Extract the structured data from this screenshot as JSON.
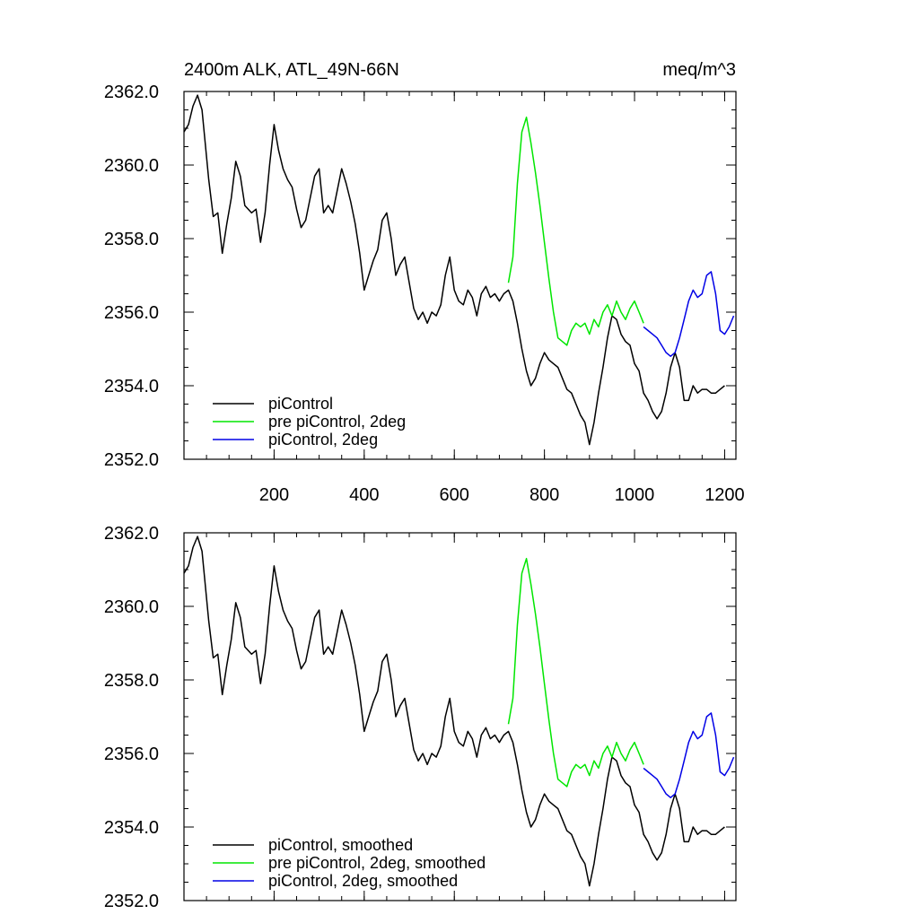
{
  "chart_data": [
    {
      "type": "line",
      "title": "2400m ALK, ATL_49N-66N",
      "units": "meq/m^3",
      "xlabel": "",
      "ylabel": "",
      "xlim": [
        0,
        1225
      ],
      "ylim": [
        2352.0,
        2362.0
      ],
      "xticks": [
        200,
        400,
        600,
        800,
        1000,
        1200
      ],
      "xtick_labels": [
        "200",
        "400",
        "600",
        "800",
        "1000",
        "1200"
      ],
      "yticks": [
        2352.0,
        2354.0,
        2356.0,
        2358.0,
        2360.0,
        2362.0
      ],
      "ytick_labels": [
        "2352.0",
        "2354.0",
        "2356.0",
        "2358.0",
        "2360.0",
        "2362.0"
      ],
      "legend_position": "bottom-left",
      "series": [
        {
          "name": "piControl",
          "color": "#000000",
          "x": [
            0,
            10,
            20,
            30,
            40,
            55,
            65,
            75,
            85,
            95,
            105,
            115,
            125,
            135,
            150,
            160,
            170,
            180,
            190,
            200,
            210,
            220,
            230,
            240,
            250,
            260,
            270,
            280,
            290,
            300,
            310,
            320,
            330,
            340,
            350,
            360,
            370,
            380,
            390,
            400,
            410,
            420,
            430,
            440,
            450,
            460,
            470,
            480,
            490,
            500,
            510,
            520,
            530,
            540,
            550,
            560,
            570,
            580,
            590,
            600,
            610,
            620,
            630,
            640,
            650,
            660,
            670,
            680,
            690,
            700,
            710,
            720,
            730,
            740,
            750,
            760,
            770,
            780,
            790,
            800,
            810,
            820,
            830,
            840,
            850,
            860,
            870,
            880,
            890,
            900,
            910,
            920,
            930,
            940,
            950,
            960,
            970,
            980,
            990,
            1000,
            1010,
            1020,
            1030,
            1040,
            1050,
            1060,
            1070,
            1080,
            1090,
            1100,
            1110,
            1120,
            1130,
            1140,
            1150,
            1160,
            1170,
            1180,
            1190,
            1200
          ],
          "y": [
            2360.9,
            2361.1,
            2361.6,
            2361.9,
            2361.5,
            2359.6,
            2358.6,
            2358.7,
            2357.6,
            2358.4,
            2359.1,
            2360.1,
            2359.7,
            2358.9,
            2358.7,
            2358.8,
            2357.9,
            2358.7,
            2360.0,
            2361.1,
            2360.4,
            2359.9,
            2359.6,
            2359.4,
            2358.8,
            2358.3,
            2358.5,
            2359.1,
            2359.7,
            2359.9,
            2358.7,
            2358.9,
            2358.7,
            2359.3,
            2359.9,
            2359.5,
            2359.0,
            2358.4,
            2357.6,
            2356.6,
            2357.0,
            2357.4,
            2357.7,
            2358.5,
            2358.7,
            2358.0,
            2357.0,
            2357.3,
            2357.5,
            2356.8,
            2356.1,
            2355.8,
            2356.0,
            2355.7,
            2356.0,
            2355.9,
            2356.2,
            2357.0,
            2357.5,
            2356.6,
            2356.3,
            2356.2,
            2356.6,
            2356.4,
            2355.9,
            2356.5,
            2356.7,
            2356.4,
            2356.5,
            2356.3,
            2356.5,
            2356.6,
            2356.3,
            2355.7,
            2355.0,
            2354.4,
            2354.0,
            2354.2,
            2354.6,
            2354.9,
            2354.7,
            2354.6,
            2354.5,
            2354.2,
            2353.9,
            2353.8,
            2353.5,
            2353.2,
            2353.0,
            2352.4,
            2353.0,
            2353.8,
            2354.5,
            2355.3,
            2355.9,
            2355.8,
            2355.4,
            2355.2,
            2355.1,
            2354.6,
            2354.4,
            2353.8,
            2353.6,
            2353.3,
            2353.1,
            2353.3,
            2353.8,
            2354.5,
            2354.9,
            2354.5,
            2353.6,
            2353.6,
            2354.0,
            2353.8,
            2353.9,
            2353.9,
            2353.8,
            2353.8,
            2353.9,
            2354.0
          ]
        },
        {
          "name": "pre piControl, 2deg",
          "color": "#00e600",
          "x": [
            720,
            730,
            740,
            750,
            760,
            770,
            780,
            790,
            800,
            810,
            820,
            830,
            840,
            850,
            860,
            870,
            880,
            890,
            900,
            910,
            920,
            930,
            940,
            950,
            960,
            970,
            980,
            990,
            1000,
            1010,
            1020
          ],
          "y": [
            2356.8,
            2357.5,
            2359.5,
            2360.9,
            2361.3,
            2360.6,
            2359.8,
            2358.9,
            2357.9,
            2356.9,
            2356.0,
            2355.3,
            2355.2,
            2355.1,
            2355.5,
            2355.7,
            2355.6,
            2355.7,
            2355.4,
            2355.8,
            2355.6,
            2356.0,
            2356.2,
            2355.9,
            2356.3,
            2356.0,
            2355.8,
            2356.1,
            2356.3,
            2356.0,
            2355.7
          ]
        },
        {
          "name": "piControl, 2deg",
          "color": "#0000e6",
          "x": [
            1020,
            1030,
            1040,
            1050,
            1060,
            1070,
            1080,
            1090,
            1100,
            1110,
            1120,
            1130,
            1140,
            1150,
            1160,
            1170,
            1180,
            1190,
            1200,
            1210,
            1220
          ],
          "y": [
            2355.6,
            2355.5,
            2355.4,
            2355.3,
            2355.1,
            2354.9,
            2354.8,
            2354.9,
            2355.3,
            2355.8,
            2356.3,
            2356.6,
            2356.4,
            2356.5,
            2357.0,
            2357.1,
            2356.5,
            2355.5,
            2355.4,
            2355.6,
            2355.9
          ]
        }
      ]
    },
    {
      "type": "line",
      "title": "",
      "xlabel": "",
      "ylabel": "",
      "xlim": [
        0,
        1225
      ],
      "ylim": [
        2352.0,
        2362.0
      ],
      "xticks": [
        200,
        400,
        600,
        800,
        1000,
        1200
      ],
      "xtick_labels": [],
      "yticks": [
        2352.0,
        2354.0,
        2356.0,
        2358.0,
        2360.0,
        2362.0
      ],
      "ytick_labels": [
        "2352.0",
        "2354.0",
        "2356.0",
        "2358.0",
        "2360.0",
        "2362.0"
      ],
      "legend_position": "bottom-left",
      "series": [
        {
          "name": "piControl, smoothed",
          "color": "#000000",
          "x": [
            0,
            10,
            20,
            30,
            40,
            55,
            65,
            75,
            85,
            95,
            105,
            115,
            125,
            135,
            150,
            160,
            170,
            180,
            190,
            200,
            210,
            220,
            230,
            240,
            250,
            260,
            270,
            280,
            290,
            300,
            310,
            320,
            330,
            340,
            350,
            360,
            370,
            380,
            390,
            400,
            410,
            420,
            430,
            440,
            450,
            460,
            470,
            480,
            490,
            500,
            510,
            520,
            530,
            540,
            550,
            560,
            570,
            580,
            590,
            600,
            610,
            620,
            630,
            640,
            650,
            660,
            670,
            680,
            690,
            700,
            710,
            720,
            730,
            740,
            750,
            760,
            770,
            780,
            790,
            800,
            810,
            820,
            830,
            840,
            850,
            860,
            870,
            880,
            890,
            900,
            910,
            920,
            930,
            940,
            950,
            960,
            970,
            980,
            990,
            1000,
            1010,
            1020,
            1030,
            1040,
            1050,
            1060,
            1070,
            1080,
            1090,
            1100,
            1110,
            1120,
            1130,
            1140,
            1150,
            1160,
            1170,
            1180,
            1190,
            1200
          ],
          "y": [
            2360.9,
            2361.1,
            2361.6,
            2361.9,
            2361.5,
            2359.6,
            2358.6,
            2358.7,
            2357.6,
            2358.4,
            2359.1,
            2360.1,
            2359.7,
            2358.9,
            2358.7,
            2358.8,
            2357.9,
            2358.7,
            2360.0,
            2361.1,
            2360.4,
            2359.9,
            2359.6,
            2359.4,
            2358.8,
            2358.3,
            2358.5,
            2359.1,
            2359.7,
            2359.9,
            2358.7,
            2358.9,
            2358.7,
            2359.3,
            2359.9,
            2359.5,
            2359.0,
            2358.4,
            2357.6,
            2356.6,
            2357.0,
            2357.4,
            2357.7,
            2358.5,
            2358.7,
            2358.0,
            2357.0,
            2357.3,
            2357.5,
            2356.8,
            2356.1,
            2355.8,
            2356.0,
            2355.7,
            2356.0,
            2355.9,
            2356.2,
            2357.0,
            2357.5,
            2356.6,
            2356.3,
            2356.2,
            2356.6,
            2356.4,
            2355.9,
            2356.5,
            2356.7,
            2356.4,
            2356.5,
            2356.3,
            2356.5,
            2356.6,
            2356.3,
            2355.7,
            2355.0,
            2354.4,
            2354.0,
            2354.2,
            2354.6,
            2354.9,
            2354.7,
            2354.6,
            2354.5,
            2354.2,
            2353.9,
            2353.8,
            2353.5,
            2353.2,
            2353.0,
            2352.4,
            2353.0,
            2353.8,
            2354.5,
            2355.3,
            2355.9,
            2355.8,
            2355.4,
            2355.2,
            2355.1,
            2354.6,
            2354.4,
            2353.8,
            2353.6,
            2353.3,
            2353.1,
            2353.3,
            2353.8,
            2354.5,
            2354.9,
            2354.5,
            2353.6,
            2353.6,
            2354.0,
            2353.8,
            2353.9,
            2353.9,
            2353.8,
            2353.8,
            2353.9,
            2354.0
          ]
        },
        {
          "name": "pre piControl, 2deg, smoothed",
          "color": "#00e600",
          "x": [
            720,
            730,
            740,
            750,
            760,
            770,
            780,
            790,
            800,
            810,
            820,
            830,
            840,
            850,
            860,
            870,
            880,
            890,
            900,
            910,
            920,
            930,
            940,
            950,
            960,
            970,
            980,
            990,
            1000,
            1010,
            1020
          ],
          "y": [
            2356.8,
            2357.5,
            2359.5,
            2360.9,
            2361.3,
            2360.6,
            2359.8,
            2358.9,
            2357.9,
            2356.9,
            2356.0,
            2355.3,
            2355.2,
            2355.1,
            2355.5,
            2355.7,
            2355.6,
            2355.7,
            2355.4,
            2355.8,
            2355.6,
            2356.0,
            2356.2,
            2355.9,
            2356.3,
            2356.0,
            2355.8,
            2356.1,
            2356.3,
            2356.0,
            2355.7
          ]
        },
        {
          "name": "piControl, 2deg, smoothed",
          "color": "#0000e6",
          "x": [
            1020,
            1030,
            1040,
            1050,
            1060,
            1070,
            1080,
            1090,
            1100,
            1110,
            1120,
            1130,
            1140,
            1150,
            1160,
            1170,
            1180,
            1190,
            1200,
            1210,
            1220
          ],
          "y": [
            2355.6,
            2355.5,
            2355.4,
            2355.3,
            2355.1,
            2354.9,
            2354.8,
            2354.9,
            2355.3,
            2355.8,
            2356.3,
            2356.6,
            2356.4,
            2356.5,
            2357.0,
            2357.1,
            2356.5,
            2355.5,
            2355.4,
            2355.6,
            2355.9
          ]
        }
      ]
    }
  ]
}
